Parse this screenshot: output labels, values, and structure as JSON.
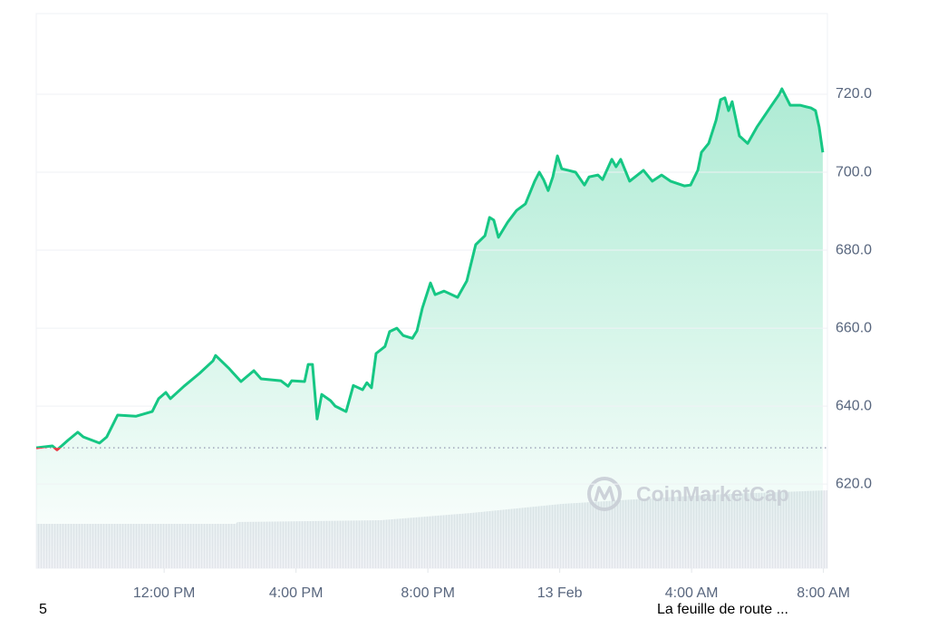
{
  "chart_data": {
    "type": "line",
    "watermark": "CoinMarketCap",
    "x": [
      8.12,
      8.61,
      8.75,
      8.89,
      9.08,
      9.38,
      9.55,
      10.04,
      10.26,
      10.59,
      11.14,
      11.64,
      11.83,
      12.05,
      12.19,
      12.6,
      13.07,
      13.48,
      13.56,
      13.95,
      14.33,
      14.72,
      14.94,
      15.54,
      15.76,
      15.87,
      16.26,
      16.37,
      16.5,
      16.64,
      16.78,
      17.05,
      17.19,
      17.52,
      17.74,
      18.02,
      18.15,
      18.29,
      18.43,
      18.7,
      18.84,
      19.06,
      19.25,
      19.53,
      19.67,
      19.83,
      20.08,
      20.22,
      20.49,
      20.9,
      21.18,
      21.45,
      21.73,
      21.87,
      22.0,
      22.14,
      22.42,
      22.69,
      22.96,
      23.24,
      23.38,
      23.51,
      23.65,
      23.79,
      23.93,
      24.06,
      24.48,
      24.75,
      24.89,
      25.16,
      25.3,
      25.58,
      25.71,
      25.85,
      26.12,
      26.54,
      26.81,
      27.09,
      27.36,
      27.78,
      27.97,
      28.19,
      28.3,
      28.52,
      28.74,
      28.88,
      29.01,
      29.12,
      29.23,
      29.45,
      29.7,
      29.98,
      30.39,
      30.66,
      30.74,
      30.99,
      31.29,
      31.62,
      31.76,
      31.87,
      31.98
    ],
    "series": [
      {
        "color": "#16c784",
        "below_color": "#ea3943",
        "values": [
          629.3,
          629.8,
          628.8,
          629.8,
          631.2,
          633.3,
          632.1,
          630.5,
          632.1,
          637.7,
          637.4,
          638.6,
          641.9,
          643.5,
          641.9,
          645.1,
          648.4,
          651.6,
          653.0,
          649.8,
          646.3,
          649.1,
          647.0,
          646.5,
          645.1,
          646.5,
          646.3,
          650.7,
          650.7,
          636.7,
          643.0,
          641.4,
          640.0,
          638.6,
          645.3,
          644.2,
          646.0,
          644.7,
          653.5,
          655.3,
          659.1,
          660.0,
          658.1,
          657.4,
          659.3,
          665.1,
          671.6,
          668.6,
          669.5,
          667.9,
          672.1,
          681.4,
          683.7,
          688.4,
          687.7,
          683.3,
          687.2,
          690.2,
          691.9,
          697.7,
          700.0,
          698.1,
          695.3,
          698.8,
          704.2,
          700.9,
          700.0,
          696.7,
          698.8,
          699.3,
          698.1,
          703.3,
          701.4,
          703.3,
          697.7,
          700.5,
          697.7,
          699.3,
          697.7,
          696.5,
          696.7,
          700.5,
          705.1,
          707.4,
          713.3,
          718.6,
          719.1,
          715.8,
          718.1,
          709.3,
          707.4,
          711.6,
          716.7,
          720.0,
          721.4,
          717.2,
          717.2,
          716.5,
          715.8,
          711.6,
          705.1
        ]
      }
    ],
    "baseline": 629.3,
    "xlim": [
      8.12,
      32.12
    ],
    "xticks": [
      {
        "value": 12,
        "label": "12:00 PM"
      },
      {
        "value": 16,
        "label": "4:00 PM"
      },
      {
        "value": 20,
        "label": "8:00 PM"
      },
      {
        "value": 24,
        "label": "13 Feb"
      },
      {
        "value": 28,
        "label": "4:00 AM"
      },
      {
        "value": 32,
        "label": "8:00 AM"
      }
    ],
    "ylim": [
      598.4,
      740.7
    ],
    "yticks": [
      {
        "value": 620,
        "label": "620.0"
      },
      {
        "value": 640,
        "label": "640.0"
      },
      {
        "value": 660,
        "label": "660.0"
      },
      {
        "value": 680,
        "label": "680.0"
      },
      {
        "value": 700,
        "label": "700.0"
      },
      {
        "value": 720,
        "label": "720.0"
      }
    ],
    "grid": true
  },
  "footer_left": "5",
  "footer_right": "La feuille de route ..."
}
